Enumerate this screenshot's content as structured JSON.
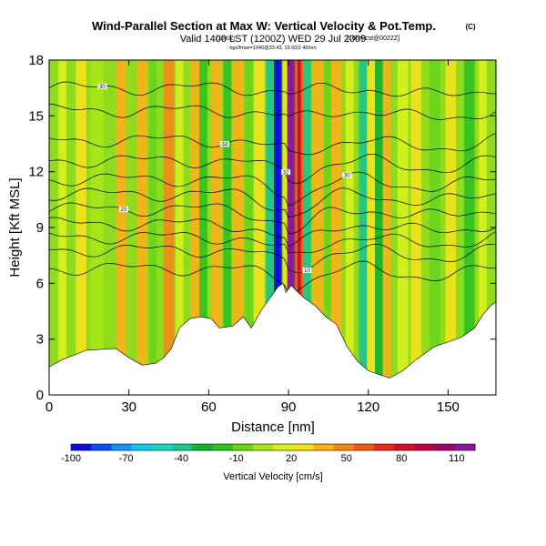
{
  "chart_data": {
    "type": "heatmap",
    "title": "Wind-Parallel Section at Max W: Vertical Velocity & Pot.Temp.",
    "title_mark": "(C)",
    "subtitle": "Valid 1400 LST (1200Z) WED 29 Jul 2009",
    "subtitle_small_1": "(1200Z)",
    "subtitle_small_2": "[10hrFcst@0022Z]",
    "subtitle_small_3": "bgx/fmax=1940@33.43, 19.60/2.49/nm",
    "xlabel": "Distance [nm]",
    "ylabel": "Height [Kft MSL]",
    "xlim": [
      0,
      168
    ],
    "ylim": [
      0,
      18
    ],
    "x_ticks": [
      "0",
      "30",
      "60",
      "90",
      "120",
      "150"
    ],
    "y_ticks": [
      "0",
      "3",
      "6",
      "9",
      "12",
      "15",
      "18"
    ],
    "x_tick_values": [
      0,
      30,
      60,
      90,
      120,
      150
    ],
    "y_tick_values": [
      0,
      3,
      6,
      9,
      12,
      15,
      18
    ],
    "terrain": [
      [
        0,
        1.5
      ],
      [
        5,
        1.9
      ],
      [
        14,
        2.4
      ],
      [
        25,
        2.5
      ],
      [
        30,
        2.0
      ],
      [
        35,
        1.6
      ],
      [
        40,
        1.7
      ],
      [
        43,
        2.0
      ],
      [
        46,
        2.5
      ],
      [
        49,
        3.6
      ],
      [
        53,
        4.1
      ],
      [
        57,
        4.2
      ],
      [
        61,
        4.1
      ],
      [
        64,
        3.6
      ],
      [
        69,
        3.7
      ],
      [
        73,
        4.2
      ],
      [
        76,
        3.6
      ],
      [
        80,
        4.6
      ],
      [
        84,
        5.4
      ],
      [
        86,
        5.8
      ],
      [
        88,
        6.0
      ],
      [
        89,
        5.5
      ],
      [
        91,
        5.9
      ],
      [
        93,
        5.6
      ],
      [
        96,
        5.2
      ],
      [
        100,
        4.8
      ],
      [
        104,
        4.2
      ],
      [
        108,
        3.8
      ],
      [
        112,
        2.6
      ],
      [
        116,
        1.8
      ],
      [
        120,
        1.3
      ],
      [
        124,
        1.1
      ],
      [
        128,
        0.9
      ],
      [
        133,
        1.3
      ],
      [
        138,
        1.9
      ],
      [
        145,
        2.6
      ],
      [
        155,
        3.1
      ],
      [
        160,
        3.6
      ],
      [
        163,
        4.3
      ],
      [
        166,
        4.8
      ],
      [
        168,
        5.0
      ]
    ],
    "theta_contours": [
      {
        "label": "30",
        "base": 16.5,
        "amp": 0.3
      },
      {
        "label": "",
        "base": 15.3,
        "amp": 0.5
      },
      {
        "label": "34",
        "base": 13.7,
        "amp": 0.9
      },
      {
        "label": "32",
        "base": 12.6,
        "amp": 1.0
      },
      {
        "label": "30",
        "base": 11.6,
        "amp": 1.1
      },
      {
        "label": "",
        "base": 10.8,
        "amp": 1.2
      },
      {
        "label": "20",
        "base": 10.0,
        "amp": 1.3
      },
      {
        "label": "",
        "base": 9.2,
        "amp": 1.3
      },
      {
        "label": "",
        "base": 8.5,
        "amp": 1.2
      },
      {
        "label": "10",
        "base": 7.8,
        "amp": 1.1
      },
      {
        "label": "",
        "base": 6.8,
        "amp": 1.0
      }
    ],
    "colorbar": {
      "label": "Vertical Velocity [cm/s]",
      "min": -100,
      "max": 120,
      "tick_labels": [
        "-100",
        "-70",
        "-40",
        "-10",
        "20",
        "50",
        "80",
        "110"
      ],
      "tick_values": [
        -100,
        -70,
        -40,
        -10,
        20,
        50,
        80,
        110
      ],
      "colors": [
        "#0d0dd8",
        "#0d4ff0",
        "#1a8ff2",
        "#17c7e6",
        "#1ed6c0",
        "#1fc48a",
        "#16b12f",
        "#33c023",
        "#6ad41c",
        "#a8e51a",
        "#d8f01d",
        "#f2e21c",
        "#f6b21a",
        "#f28a1a",
        "#ef5a1a",
        "#e42a1c",
        "#cf1228",
        "#b30a3e",
        "#96086a",
        "#8a1898"
      ]
    },
    "w_bands": [
      {
        "x": 5,
        "w": 3,
        "v": 18
      },
      {
        "x": 12,
        "w": 4,
        "v": 28
      },
      {
        "x": 18,
        "w": 5,
        "v": 8
      },
      {
        "x": 27,
        "w": 4,
        "v": 32
      },
      {
        "x": 35,
        "w": 4,
        "v": 38
      },
      {
        "x": 39,
        "w": 3,
        "v": -5
      },
      {
        "x": 45,
        "w": 4,
        "v": 45
      },
      {
        "x": 49,
        "w": 3,
        "v": 12
      },
      {
        "x": 55,
        "w": 4,
        "v": 40
      },
      {
        "x": 58,
        "w": 3,
        "v": -15
      },
      {
        "x": 63,
        "w": 4,
        "v": 42
      },
      {
        "x": 67,
        "w": 3,
        "v": -20
      },
      {
        "x": 71,
        "w": 4,
        "v": 35
      },
      {
        "x": 75,
        "w": 3,
        "v": -10
      },
      {
        "x": 79,
        "w": 4,
        "v": 30
      },
      {
        "x": 83,
        "w": 3,
        "v": -45
      },
      {
        "x": 86,
        "w": 3,
        "v": -90
      },
      {
        "x": 89,
        "w": 2,
        "v": 30
      },
      {
        "x": 91,
        "w": 3,
        "v": 110
      },
      {
        "x": 94,
        "w": 3,
        "v": 60
      },
      {
        "x": 97,
        "w": 3,
        "v": -35
      },
      {
        "x": 101,
        "w": 4,
        "v": 35
      },
      {
        "x": 105,
        "w": 3,
        "v": -10
      },
      {
        "x": 108,
        "w": 4,
        "v": 38
      },
      {
        "x": 113,
        "w": 3,
        "v": 15
      },
      {
        "x": 118,
        "w": 3,
        "v": -45
      },
      {
        "x": 121,
        "w": 3,
        "v": 28
      },
      {
        "x": 124,
        "w": 3,
        "v": -25
      },
      {
        "x": 127,
        "w": 3,
        "v": 40
      },
      {
        "x": 133,
        "w": 4,
        "v": 12
      },
      {
        "x": 138,
        "w": 4,
        "v": 28
      },
      {
        "x": 145,
        "w": 4,
        "v": -10
      },
      {
        "x": 151,
        "w": 4,
        "v": 30
      },
      {
        "x": 158,
        "w": 4,
        "v": -15
      },
      {
        "x": 163,
        "w": 3,
        "v": 18
      }
    ]
  }
}
